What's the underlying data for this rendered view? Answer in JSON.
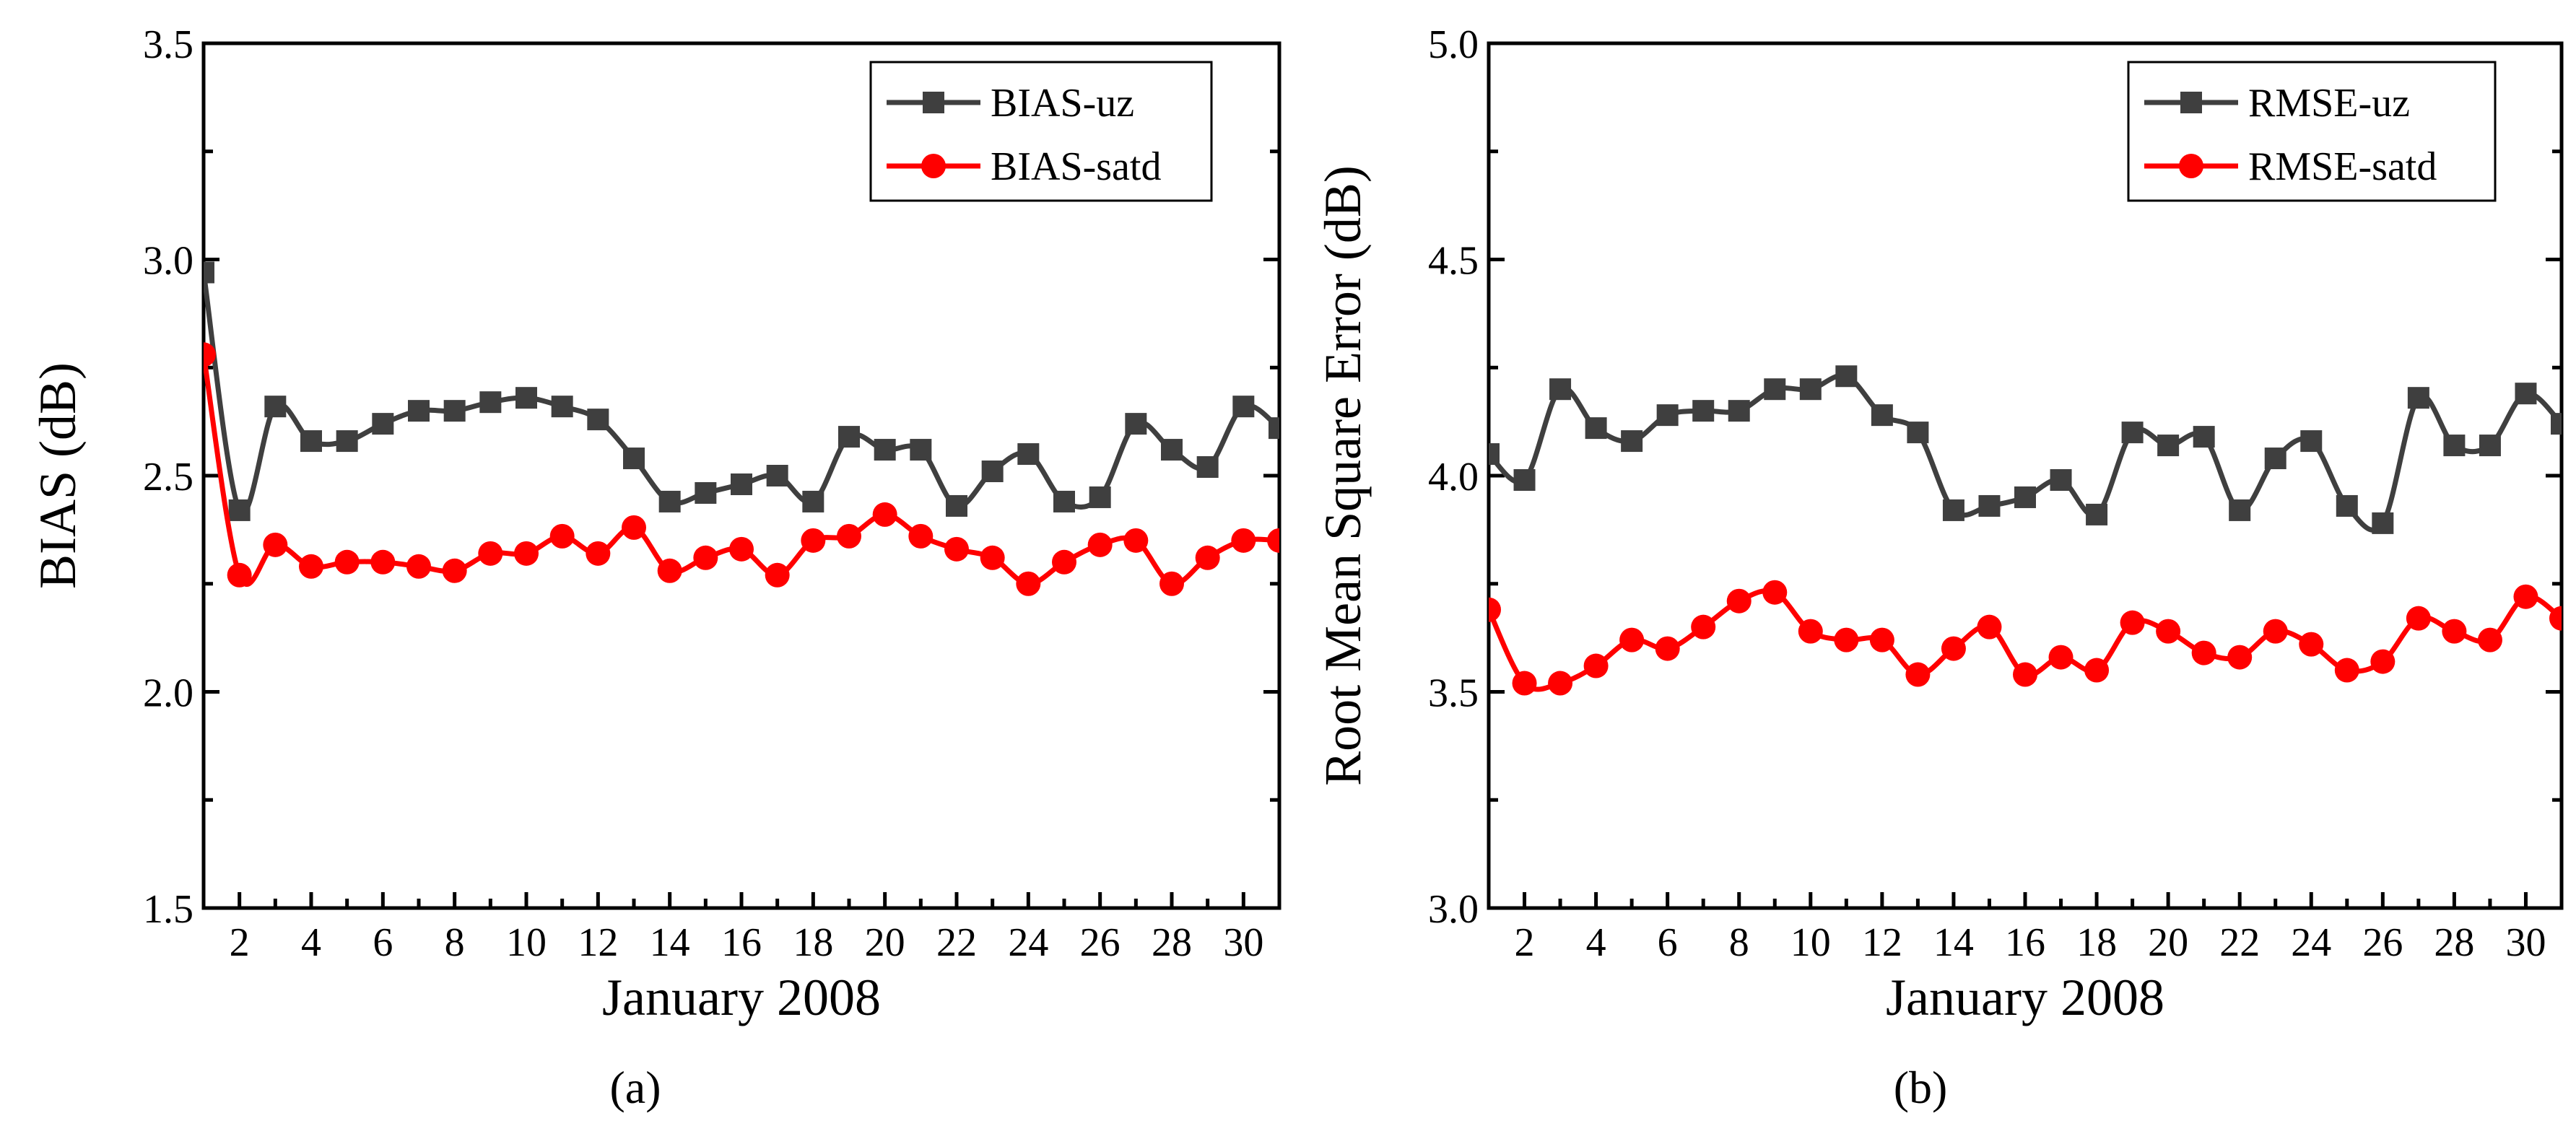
{
  "chart_data": [
    {
      "type": "line",
      "panel_label": "(a)",
      "xlabel": "January 2008",
      "ylabel": "BIAS (dB)",
      "xlim": [
        1,
        31
      ],
      "ylim": [
        1.5,
        3.5
      ],
      "xticks": [
        2,
        4,
        6,
        8,
        10,
        12,
        14,
        16,
        18,
        20,
        22,
        24,
        26,
        28,
        30
      ],
      "yticks": [
        1.5,
        2.0,
        2.5,
        3.0,
        3.5
      ],
      "ytick_labels": [
        "1.5",
        "2.0",
        "2.5",
        "3.0",
        "3.5"
      ],
      "legend_position": "top-right",
      "x": [
        1,
        2,
        3,
        4,
        5,
        6,
        7,
        8,
        9,
        10,
        11,
        12,
        13,
        14,
        15,
        16,
        17,
        18,
        19,
        20,
        21,
        22,
        23,
        24,
        25,
        26,
        27,
        28,
        29,
        30,
        31
      ],
      "series": [
        {
          "name": "BIAS-uz",
          "color": "#3f3f3f",
          "marker": "square",
          "values": [
            2.97,
            2.42,
            2.66,
            2.58,
            2.58,
            2.62,
            2.65,
            2.65,
            2.67,
            2.68,
            2.66,
            2.63,
            2.54,
            2.44,
            2.46,
            2.48,
            2.5,
            2.44,
            2.59,
            2.56,
            2.56,
            2.43,
            2.51,
            2.55,
            2.44,
            2.45,
            2.62,
            2.56,
            2.52,
            2.66,
            2.61
          ]
        },
        {
          "name": "BIAS-satd",
          "color": "#ff0000",
          "marker": "circle",
          "values": [
            2.78,
            2.27,
            2.34,
            2.29,
            2.3,
            2.3,
            2.29,
            2.28,
            2.32,
            2.32,
            2.36,
            2.32,
            2.38,
            2.28,
            2.31,
            2.33,
            2.27,
            2.35,
            2.36,
            2.41,
            2.36,
            2.33,
            2.31,
            2.25,
            2.3,
            2.34,
            2.35,
            2.25,
            2.31,
            2.35,
            2.35
          ]
        }
      ]
    },
    {
      "type": "line",
      "panel_label": "(b)",
      "xlabel": "January 2008",
      "ylabel": "Root Mean Square Error (dB)",
      "xlim": [
        1,
        31
      ],
      "ylim": [
        3.0,
        5.0
      ],
      "xticks": [
        2,
        4,
        6,
        8,
        10,
        12,
        14,
        16,
        18,
        20,
        22,
        24,
        26,
        28,
        30
      ],
      "yticks": [
        3.0,
        3.5,
        4.0,
        4.5,
        5.0
      ],
      "ytick_labels": [
        "3.0",
        "3.5",
        "4.0",
        "4.5",
        "5.0"
      ],
      "legend_position": "top-right",
      "x": [
        1,
        2,
        3,
        4,
        5,
        6,
        7,
        8,
        9,
        10,
        11,
        12,
        13,
        14,
        15,
        16,
        17,
        18,
        19,
        20,
        21,
        22,
        23,
        24,
        25,
        26,
        27,
        28,
        29,
        30,
        31
      ],
      "series": [
        {
          "name": "RMSE-uz",
          "color": "#3f3f3f",
          "marker": "square",
          "values": [
            4.05,
            3.99,
            4.2,
            4.11,
            4.08,
            4.14,
            4.15,
            4.15,
            4.2,
            4.2,
            4.23,
            4.14,
            4.1,
            3.92,
            3.93,
            3.95,
            3.99,
            3.91,
            4.1,
            4.07,
            4.09,
            3.92,
            4.04,
            4.08,
            3.93,
            3.89,
            4.18,
            4.07,
            4.07,
            4.19,
            4.12
          ]
        },
        {
          "name": "RMSE-satd",
          "color": "#ff0000",
          "marker": "circle",
          "values": [
            3.69,
            3.52,
            3.52,
            3.56,
            3.62,
            3.6,
            3.65,
            3.71,
            3.73,
            3.64,
            3.62,
            3.62,
            3.54,
            3.6,
            3.65,
            3.54,
            3.58,
            3.55,
            3.66,
            3.64,
            3.59,
            3.58,
            3.64,
            3.61,
            3.55,
            3.57,
            3.67,
            3.64,
            3.62,
            3.72,
            3.67
          ]
        }
      ]
    }
  ]
}
